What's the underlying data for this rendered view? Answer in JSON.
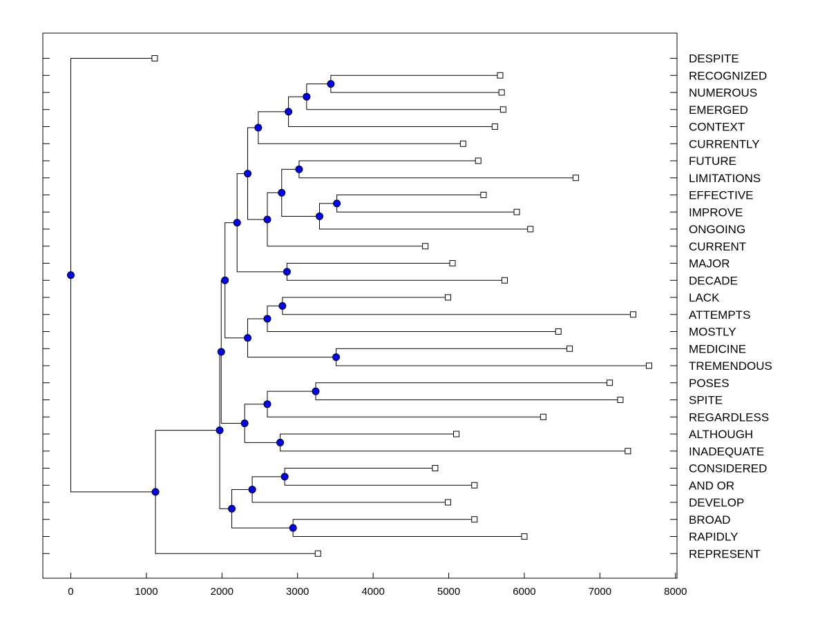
{
  "chart_data": {
    "type": "dendrogram",
    "title": "",
    "xlabel": "",
    "ylabel": "",
    "xlim": [
      -370,
      8020
    ],
    "xticks": [
      0,
      1000,
      2000,
      3000,
      4000,
      5000,
      6000,
      7000,
      8000
    ],
    "xtick_labels": [
      "0",
      "1000",
      "2000",
      "3000",
      "4000",
      "5000",
      "6000",
      "7000",
      "8000"
    ],
    "grid": false,
    "leaf_marker": "open-square",
    "node_marker": "blue-dot",
    "node_color": "#0000ff",
    "leaves": [
      {
        "label": "DESPITE",
        "x": 1110
      },
      {
        "label": "RECOGNIZED",
        "x": 5680
      },
      {
        "label": "NUMEROUS",
        "x": 5700
      },
      {
        "label": "EMERGED",
        "x": 5720
      },
      {
        "label": "CONTEXT",
        "x": 5610
      },
      {
        "label": "CURRENTLY",
        "x": 5190
      },
      {
        "label": "FUTURE",
        "x": 5390
      },
      {
        "label": "LIMITATIONS",
        "x": 6680
      },
      {
        "label": "EFFECTIVE",
        "x": 5460
      },
      {
        "label": "IMPROVE",
        "x": 5900
      },
      {
        "label": "ONGOING",
        "x": 6080
      },
      {
        "label": "CURRENT",
        "x": 4690
      },
      {
        "label": "MAJOR",
        "x": 5050
      },
      {
        "label": "DECADE",
        "x": 5740
      },
      {
        "label": "LACK",
        "x": 4990
      },
      {
        "label": "ATTEMPTS",
        "x": 7440
      },
      {
        "label": "MOSTLY",
        "x": 6450
      },
      {
        "label": "MEDICINE",
        "x": 6600
      },
      {
        "label": "TREMENDOUS",
        "x": 7650
      },
      {
        "label": "POSES",
        "x": 7130
      },
      {
        "label": "SPITE",
        "x": 7270
      },
      {
        "label": "REGARDLESS",
        "x": 6250
      },
      {
        "label": "ALTHOUGH",
        "x": 5100
      },
      {
        "label": "INADEQUATE",
        "x": 7370
      },
      {
        "label": "CONSIDERED",
        "x": 4820
      },
      {
        "label": "AND OR",
        "x": 5340
      },
      {
        "label": "DEVELOP",
        "x": 4990
      },
      {
        "label": "BROAD",
        "x": 5340
      },
      {
        "label": "RAPIDLY",
        "x": 6000
      },
      {
        "label": "REPRESENT",
        "x": 3270
      }
    ],
    "merges": [
      {
        "x": 3440,
        "a": 1,
        "b": 2
      },
      {
        "x": 3120,
        "a": 30,
        "b": 3
      },
      {
        "x": 2880,
        "a": 31,
        "b": 4
      },
      {
        "x": 2480,
        "a": 32,
        "b": 5
      },
      {
        "x": 3020,
        "a": 6,
        "b": 7
      },
      {
        "x": 3520,
        "a": 8,
        "b": 9
      },
      {
        "x": 3290,
        "a": 35,
        "b": 10
      },
      {
        "x": 2790,
        "a": 34,
        "b": 36
      },
      {
        "x": 2600,
        "a": 37,
        "b": 11
      },
      {
        "x": 2340,
        "a": 33,
        "b": 38
      },
      {
        "x": 2860,
        "a": 12,
        "b": 13
      },
      {
        "x": 2200,
        "a": 39,
        "b": 40
      },
      {
        "x": 2800,
        "a": 14,
        "b": 15
      },
      {
        "x": 2600,
        "a": 42,
        "b": 16
      },
      {
        "x": 3510,
        "a": 17,
        "b": 18
      },
      {
        "x": 2340,
        "a": 43,
        "b": 44
      },
      {
        "x": 2040,
        "a": 41,
        "b": 45
      },
      {
        "x": 3240,
        "a": 19,
        "b": 20
      },
      {
        "x": 2600,
        "a": 47,
        "b": 21
      },
      {
        "x": 2770,
        "a": 22,
        "b": 23
      },
      {
        "x": 2300,
        "a": 48,
        "b": 49
      },
      {
        "x": 1990,
        "a": 46,
        "b": 50
      },
      {
        "x": 2830,
        "a": 24,
        "b": 25
      },
      {
        "x": 2400,
        "a": 52,
        "b": 26
      },
      {
        "x": 2940,
        "a": 27,
        "b": 28
      },
      {
        "x": 2130,
        "a": 53,
        "b": 54
      },
      {
        "x": 1970,
        "a": 51,
        "b": 55
      },
      {
        "x": 1120,
        "a": 56,
        "b": 29
      },
      {
        "x": 0,
        "a": 0,
        "b": 57
      }
    ]
  }
}
